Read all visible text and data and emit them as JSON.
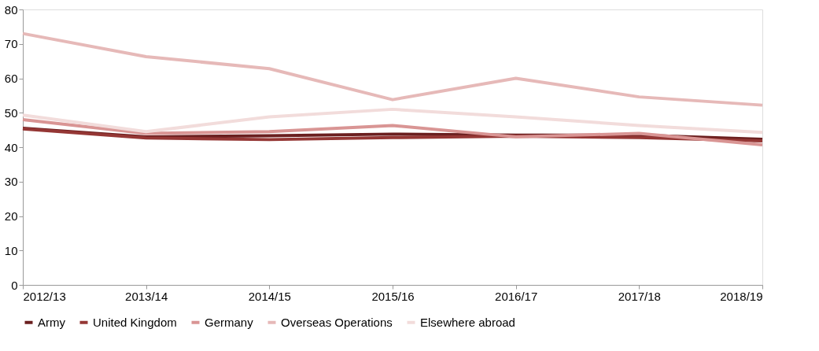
{
  "chart_data": {
    "type": "line",
    "categories": [
      "2012/13",
      "2013/14",
      "2014/15",
      "2015/16",
      "2016/17",
      "2017/18",
      "2018/19"
    ],
    "series": [
      {
        "name": "Army",
        "color": "#6b1f1f",
        "values": [
          45.5,
          43.0,
          43.3,
          43.8,
          43.5,
          43.5,
          42.3
        ]
      },
      {
        "name": "United Kingdom",
        "color": "#953735",
        "values": [
          45.3,
          42.7,
          42.2,
          42.8,
          43.2,
          42.8,
          41.8
        ]
      },
      {
        "name": "Germany",
        "color": "#d99594",
        "values": [
          48.0,
          44.0,
          44.5,
          46.3,
          43.0,
          44.0,
          40.7
        ]
      },
      {
        "name": "Overseas Operations",
        "color": "#e6b9b8",
        "values": [
          73.0,
          66.3,
          62.8,
          53.8,
          60.0,
          54.6,
          52.2
        ]
      },
      {
        "name": "Elsewhere abroad",
        "color": "#f2dcdb",
        "values": [
          49.3,
          44.5,
          48.8,
          51.0,
          48.8,
          46.3,
          44.3
        ]
      }
    ],
    "ylim": [
      0,
      80
    ],
    "yticks": [
      0,
      10,
      20,
      30,
      40,
      50,
      60,
      70,
      80
    ],
    "grid": false,
    "legend": "bottom",
    "marker": "none",
    "line_style": "solid"
  }
}
